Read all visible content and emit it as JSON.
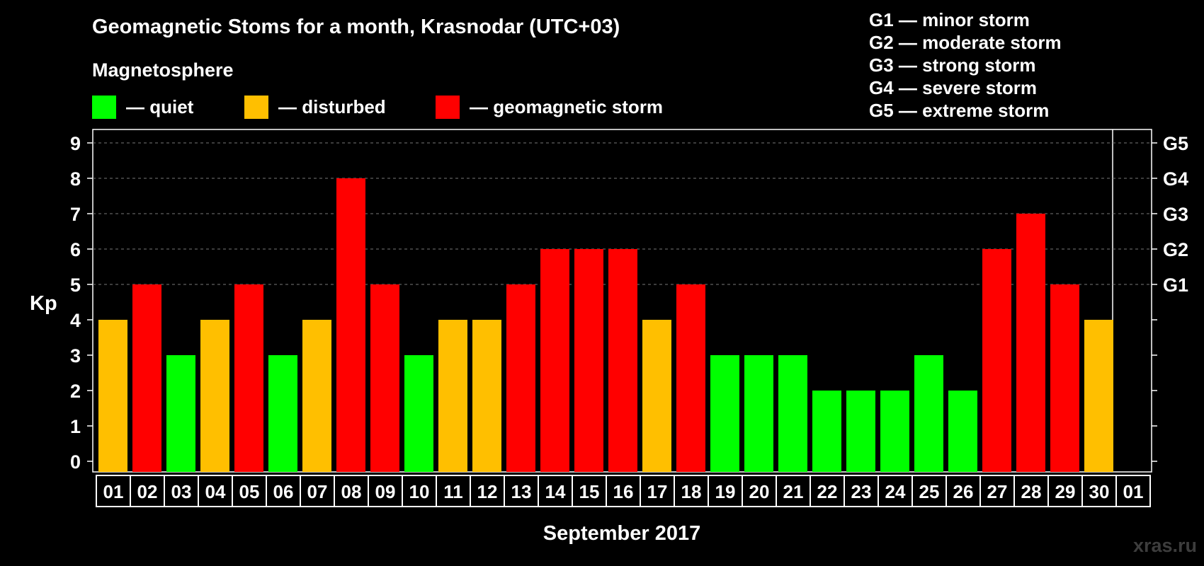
{
  "title": "Geomagnetic Stoms for a month, Krasnodar (UTC+03)",
  "subtitle": "Magnetosphere",
  "legend": [
    {
      "label": "— quiet",
      "color": "#00ff00"
    },
    {
      "label": "— disturbed",
      "color": "#ffbf00"
    },
    {
      "label": "— geomagnetic storm",
      "color": "#ff0000"
    }
  ],
  "g_scale": [
    "G1 — minor storm",
    "G2 — moderate storm",
    "G3 — strong storm",
    "G4 — severe storm",
    "G5 — extreme storm"
  ],
  "watermark": "xras.ru",
  "chart_data": {
    "type": "bar",
    "title": "Geomagnetic Stoms for a month, Krasnodar (UTC+03)",
    "xlabel": "September 2017",
    "ylabel": "Kp",
    "ylim": [
      0,
      9
    ],
    "yticks": [
      "0",
      "1",
      "2",
      "3",
      "4",
      "5",
      "6",
      "7",
      "8",
      "9"
    ],
    "right_axis_labels": [
      {
        "kp": 5,
        "label": "G1"
      },
      {
        "kp": 6,
        "label": "G2"
      },
      {
        "kp": 7,
        "label": "G3"
      },
      {
        "kp": 8,
        "label": "G4"
      },
      {
        "kp": 9,
        "label": "G5"
      }
    ],
    "grid": "horizontal dashed at Kp 5-9",
    "categories": [
      "01",
      "02",
      "03",
      "04",
      "05",
      "06",
      "07",
      "08",
      "09",
      "10",
      "11",
      "12",
      "13",
      "14",
      "15",
      "16",
      "17",
      "18",
      "19",
      "20",
      "21",
      "22",
      "23",
      "24",
      "25",
      "26",
      "27",
      "28",
      "29",
      "30",
      "01"
    ],
    "values": [
      4,
      5,
      3,
      4,
      5,
      3,
      4,
      8,
      5,
      3,
      4,
      4,
      5,
      6,
      6,
      6,
      4,
      5,
      3,
      3,
      3,
      2,
      2,
      2,
      3,
      2,
      6,
      7,
      5,
      4,
      null
    ],
    "status_colors": {
      "quiet": "#00ff00",
      "disturbed": "#ffbf00",
      "storm": "#ff0000"
    }
  }
}
